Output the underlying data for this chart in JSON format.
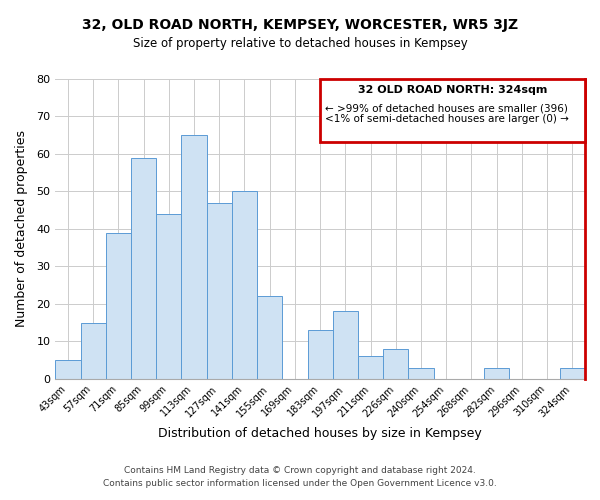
{
  "title": "32, OLD ROAD NORTH, KEMPSEY, WORCESTER, WR5 3JZ",
  "subtitle": "Size of property relative to detached houses in Kempsey",
  "xlabel": "Distribution of detached houses by size in Kempsey",
  "ylabel": "Number of detached properties",
  "bar_color": "#cfe2f3",
  "bar_edge_color": "#5b9bd5",
  "categories": [
    "43sqm",
    "57sqm",
    "71sqm",
    "85sqm",
    "99sqm",
    "113sqm",
    "127sqm",
    "141sqm",
    "155sqm",
    "169sqm",
    "183sqm",
    "197sqm",
    "211sqm",
    "226sqm",
    "240sqm",
    "254sqm",
    "268sqm",
    "282sqm",
    "296sqm",
    "310sqm",
    "324sqm"
  ],
  "values": [
    5,
    15,
    39,
    59,
    44,
    65,
    47,
    50,
    22,
    0,
    13,
    18,
    6,
    8,
    3,
    0,
    0,
    3,
    0,
    0,
    3
  ],
  "ylim": [
    0,
    80
  ],
  "yticks": [
    0,
    10,
    20,
    30,
    40,
    50,
    60,
    70,
    80
  ],
  "legend_title": "32 OLD ROAD NORTH: 324sqm",
  "legend_line1": "← >99% of detached houses are smaller (396)",
  "legend_line2": "<1% of semi-detached houses are larger (0) →",
  "legend_box_color": "#ffffff",
  "legend_box_edge_color": "#cc0000",
  "footer_line1": "Contains HM Land Registry data © Crown copyright and database right 2024.",
  "footer_line2": "Contains public sector information licensed under the Open Government Licence v3.0.",
  "grid_color": "#cccccc",
  "background_color": "#ffffff"
}
